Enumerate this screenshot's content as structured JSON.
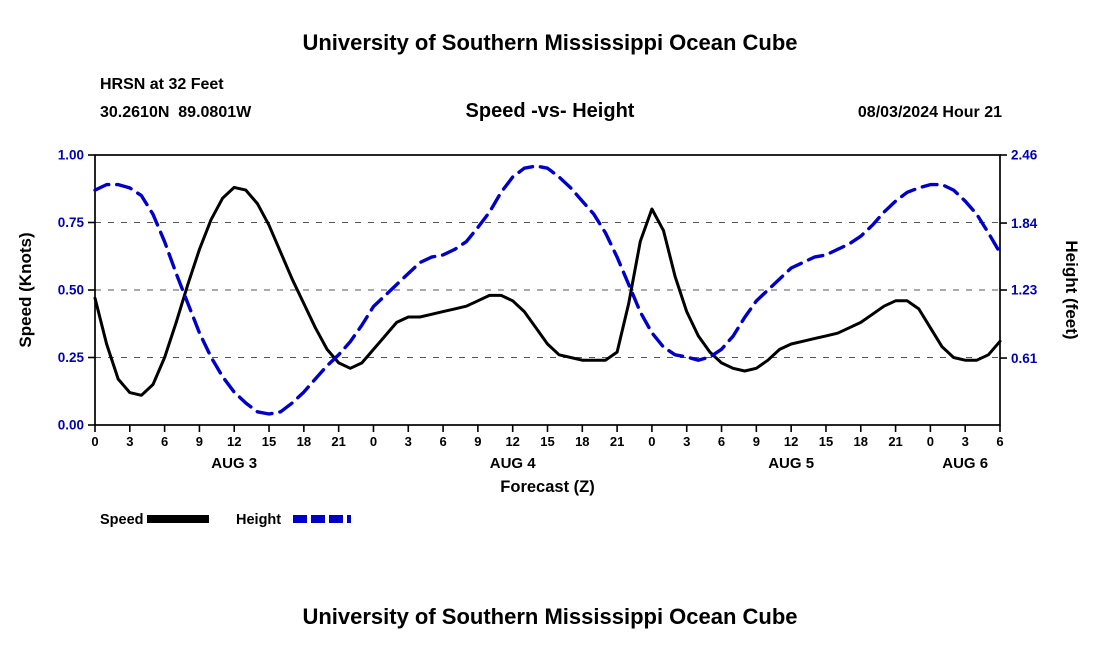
{
  "page": {
    "top_title": "University of Southern Mississippi Ocean Cube",
    "bottom_title": "University of Southern Mississippi Ocean Cube"
  },
  "header": {
    "station_line1": "HRSN at 32 Feet",
    "station_line2": "30.2610N  89.0801W",
    "chart_title": "Speed -vs- Height",
    "datetime": "08/03/2024 Hour 21"
  },
  "colors": {
    "tick_label": "#0000bb",
    "x_tick_label": "#000000",
    "speed_line": "#000000",
    "height_line": "#0000cc",
    "grid": "#555555",
    "frame": "#000000"
  },
  "chart_data": {
    "type": "line",
    "title": "Speed -vs- Height",
    "xlabel": "Forecast (Z)",
    "ylabel_left": "Speed (Knots)",
    "ylabel_right": "Height (feet)",
    "x_unit": "hours from AUG 3 00Z",
    "x_max": 78,
    "x_tick_step": 3,
    "x_tick_label_rule": "hour mod 24",
    "day_labels": [
      {
        "label": "AUG 3",
        "x": 12
      },
      {
        "label": "AUG 4",
        "x": 36
      },
      {
        "label": "AUG 5",
        "x": 60
      },
      {
        "label": "AUG 6",
        "x": 75
      }
    ],
    "left_axis": {
      "min": 0,
      "max": 1.0,
      "ticks": [
        "0.00",
        "0.25",
        "0.50",
        "0.75",
        "1.00"
      ],
      "grid_ticks": [
        0.25,
        0.5,
        0.75
      ],
      "grid": true
    },
    "right_axis": {
      "min": 0,
      "max": 2.46,
      "ticks": [
        "0.61",
        "1.23",
        "1.84",
        "2.46"
      ]
    },
    "series": [
      {
        "name": "Speed",
        "axis": "left",
        "units": "knots",
        "color": "#000000",
        "style": "solid",
        "x_step": 1,
        "values": [
          0.47,
          0.3,
          0.17,
          0.12,
          0.11,
          0.15,
          0.25,
          0.38,
          0.52,
          0.65,
          0.76,
          0.84,
          0.88,
          0.87,
          0.82,
          0.74,
          0.64,
          0.54,
          0.45,
          0.36,
          0.28,
          0.23,
          0.21,
          0.23,
          0.28,
          0.33,
          0.38,
          0.4,
          0.4,
          0.41,
          0.42,
          0.43,
          0.44,
          0.46,
          0.48,
          0.48,
          0.46,
          0.42,
          0.36,
          0.3,
          0.26,
          0.25,
          0.24,
          0.24,
          0.24,
          0.27,
          0.45,
          0.68,
          0.8,
          0.72,
          0.55,
          0.42,
          0.33,
          0.27,
          0.23,
          0.21,
          0.2,
          0.21,
          0.24,
          0.28,
          0.3,
          0.31,
          0.32,
          0.33,
          0.34,
          0.36,
          0.38,
          0.41,
          0.44,
          0.46,
          0.46,
          0.43,
          0.36,
          0.29,
          0.25,
          0.24,
          0.24,
          0.26,
          0.31
        ]
      },
      {
        "name": "Height",
        "axis": "right",
        "units": "feet",
        "color": "#0000cc",
        "style": "dashed",
        "x_step": 1,
        "values": [
          2.14,
          2.19,
          2.19,
          2.16,
          2.09,
          1.92,
          1.67,
          1.38,
          1.11,
          0.84,
          0.62,
          0.44,
          0.3,
          0.2,
          0.12,
          0.1,
          0.12,
          0.2,
          0.3,
          0.42,
          0.54,
          0.64,
          0.76,
          0.91,
          1.08,
          1.18,
          1.28,
          1.38,
          1.48,
          1.53,
          1.55,
          1.6,
          1.67,
          1.8,
          1.94,
          2.12,
          2.26,
          2.34,
          2.36,
          2.34,
          2.26,
          2.16,
          2.04,
          1.92,
          1.75,
          1.53,
          1.28,
          1.03,
          0.84,
          0.71,
          0.64,
          0.62,
          0.59,
          0.62,
          0.69,
          0.81,
          0.98,
          1.13,
          1.23,
          1.33,
          1.43,
          1.48,
          1.53,
          1.55,
          1.6,
          1.65,
          1.72,
          1.82,
          1.94,
          2.04,
          2.12,
          2.16,
          2.19,
          2.19,
          2.14,
          2.04,
          1.92,
          1.75,
          1.57
        ]
      }
    ],
    "legend": [
      {
        "label": "Speed",
        "color": "#000000",
        "style": "solid"
      },
      {
        "label": "Height",
        "color": "#0000cc",
        "style": "dashed"
      }
    ],
    "legend_position": "below"
  }
}
